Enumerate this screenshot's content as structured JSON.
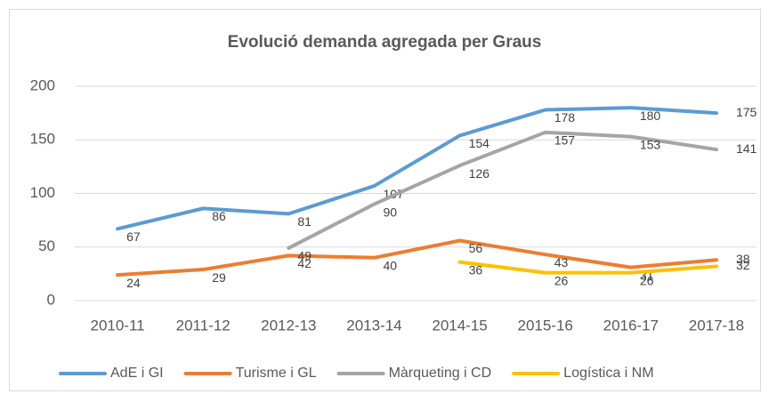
{
  "chart_data": {
    "type": "line",
    "title": "Evolució demanda agregada per Graus",
    "categories": [
      "2010-11",
      "2011-12",
      "2012-13",
      "2013-14",
      "2014-15",
      "2015-16",
      "2016-17",
      "2017-18"
    ],
    "series": [
      {
        "name": "AdE i GI",
        "color": "#5b9bd5",
        "values": [
          67,
          86,
          81,
          107,
          154,
          178,
          180,
          175
        ]
      },
      {
        "name": "Turisme i GL",
        "color": "#ed7d31",
        "values": [
          24,
          29,
          42,
          40,
          56,
          43,
          31,
          38
        ]
      },
      {
        "name": "Màrqueting i CD",
        "color": "#a5a5a5",
        "values": [
          null,
          null,
          49,
          90,
          126,
          157,
          153,
          141
        ]
      },
      {
        "name": "Logística i NM",
        "color": "#ffc000",
        "values": [
          null,
          null,
          null,
          null,
          36,
          26,
          26,
          32
        ]
      }
    ],
    "ylim": [
      0,
      200
    ],
    "yticks": [
      0,
      50,
      100,
      150,
      200
    ],
    "grid": true,
    "legend": "bottom"
  }
}
